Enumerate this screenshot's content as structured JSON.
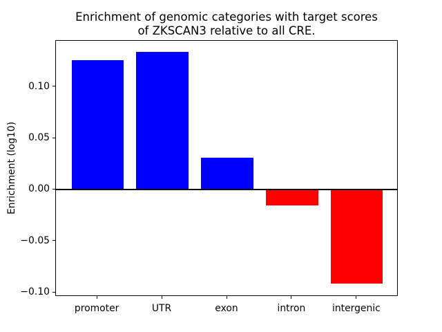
{
  "title": {
    "line1": "Enrichment of genomic categories with target scores",
    "line2": "of ZKSCAN3 relative to all CRE."
  },
  "chart_data": {
    "type": "bar",
    "title": "Enrichment of genomic categories with target scores\nof ZKSCAN3 relative to all CRE.",
    "xlabel": "",
    "ylabel": "Enrichment (log10)",
    "categories": [
      "promoter",
      "UTR",
      "exon",
      "intron",
      "intergenic"
    ],
    "values": [
      0.126,
      0.134,
      0.031,
      -0.015,
      -0.091
    ],
    "bar_colors": [
      "#0000ff",
      "#0000ff",
      "#0000ff",
      "#ff0000",
      "#ff0000"
    ],
    "positive_color": "#0000ff",
    "negative_color": "#ff0000",
    "ylim": [
      -0.104,
      0.145
    ],
    "yticks": [
      0.1,
      0.05,
      0.0,
      -0.05,
      -0.1
    ],
    "ytick_labels": [
      "0.10",
      "0.05",
      "0.00",
      "−0.05",
      "−0.10"
    ],
    "zero_line": true,
    "grid": false,
    "legend": null,
    "background_color": "#ffffff",
    "axis_color": "#000000"
  }
}
